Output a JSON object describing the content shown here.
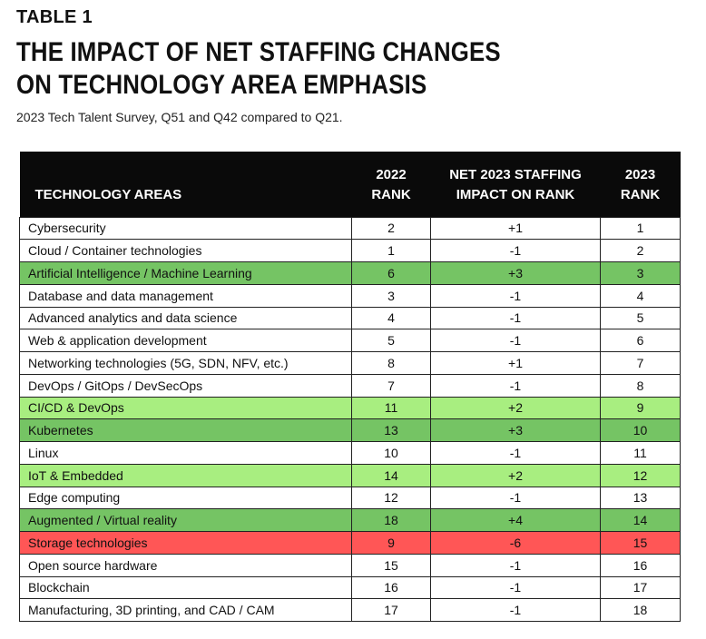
{
  "label": "TABLE 1",
  "title_line1": "THE IMPACT OF NET STAFFING CHANGES",
  "title_line2": "ON TECHNOLOGY AREA EMPHASIS",
  "subtitle": "2023 Tech Talent Survey, Q51 and Q42 compared to Q21.",
  "headers": {
    "area": "TECHNOLOGY AREAS",
    "rank2022_a": "2022",
    "rank2022_b": "RANK",
    "impact_a": "NET 2023 STAFFING",
    "impact_b": "IMPACT ON RANK",
    "rank2023_a": "2023",
    "rank2023_b": "RANK"
  },
  "colors": {
    "dark_green": "#75c464",
    "light_green": "#a8ee80",
    "red": "#ff5656",
    "header_bg": "#0a0a0a"
  },
  "rows": [
    {
      "area": "Cybersecurity",
      "r2022": "2",
      "impact": "+1",
      "r2023": "1",
      "hl": ""
    },
    {
      "area": "Cloud / Container technologies",
      "r2022": "1",
      "impact": "-1",
      "r2023": "2",
      "hl": ""
    },
    {
      "area": "Artificial Intelligence / Machine Learning",
      "r2022": "6",
      "impact": "+3",
      "r2023": "3",
      "hl": "dark"
    },
    {
      "area": "Database and data management",
      "r2022": "3",
      "impact": "-1",
      "r2023": "4",
      "hl": ""
    },
    {
      "area": "Advanced analytics and data science",
      "r2022": "4",
      "impact": "-1",
      "r2023": "5",
      "hl": ""
    },
    {
      "area": "Web & application development",
      "r2022": "5",
      "impact": "-1",
      "r2023": "6",
      "hl": ""
    },
    {
      "area": "Networking technologies (5G, SDN, NFV, etc.)",
      "r2022": "8",
      "impact": "+1",
      "r2023": "7",
      "hl": ""
    },
    {
      "area": "DevOps / GitOps / DevSecOps",
      "r2022": "7",
      "impact": "-1",
      "r2023": "8",
      "hl": ""
    },
    {
      "area": "CI/CD & DevOps",
      "r2022": "11",
      "impact": "+2",
      "r2023": "9",
      "hl": "light"
    },
    {
      "area": "Kubernetes",
      "r2022": "13",
      "impact": "+3",
      "r2023": "10",
      "hl": "dark"
    },
    {
      "area": "Linux",
      "r2022": "10",
      "impact": "-1",
      "r2023": "11",
      "hl": ""
    },
    {
      "area": "IoT & Embedded",
      "r2022": "14",
      "impact": "+2",
      "r2023": "12",
      "hl": "light"
    },
    {
      "area": "Edge computing",
      "r2022": "12",
      "impact": "-1",
      "r2023": "13",
      "hl": ""
    },
    {
      "area": "Augmented / Virtual reality",
      "r2022": "18",
      "impact": "+4",
      "r2023": "14",
      "hl": "dark"
    },
    {
      "area": "Storage technologies",
      "r2022": "9",
      "impact": "-6",
      "r2023": "15",
      "hl": "red"
    },
    {
      "area": "Open source hardware",
      "r2022": "15",
      "impact": "-1",
      "r2023": "16",
      "hl": ""
    },
    {
      "area": "Blockchain",
      "r2022": "16",
      "impact": "-1",
      "r2023": "17",
      "hl": ""
    },
    {
      "area": "Manufacturing, 3D printing, and CAD / CAM",
      "r2022": "17",
      "impact": "-1",
      "r2023": "18",
      "hl": ""
    }
  ]
}
